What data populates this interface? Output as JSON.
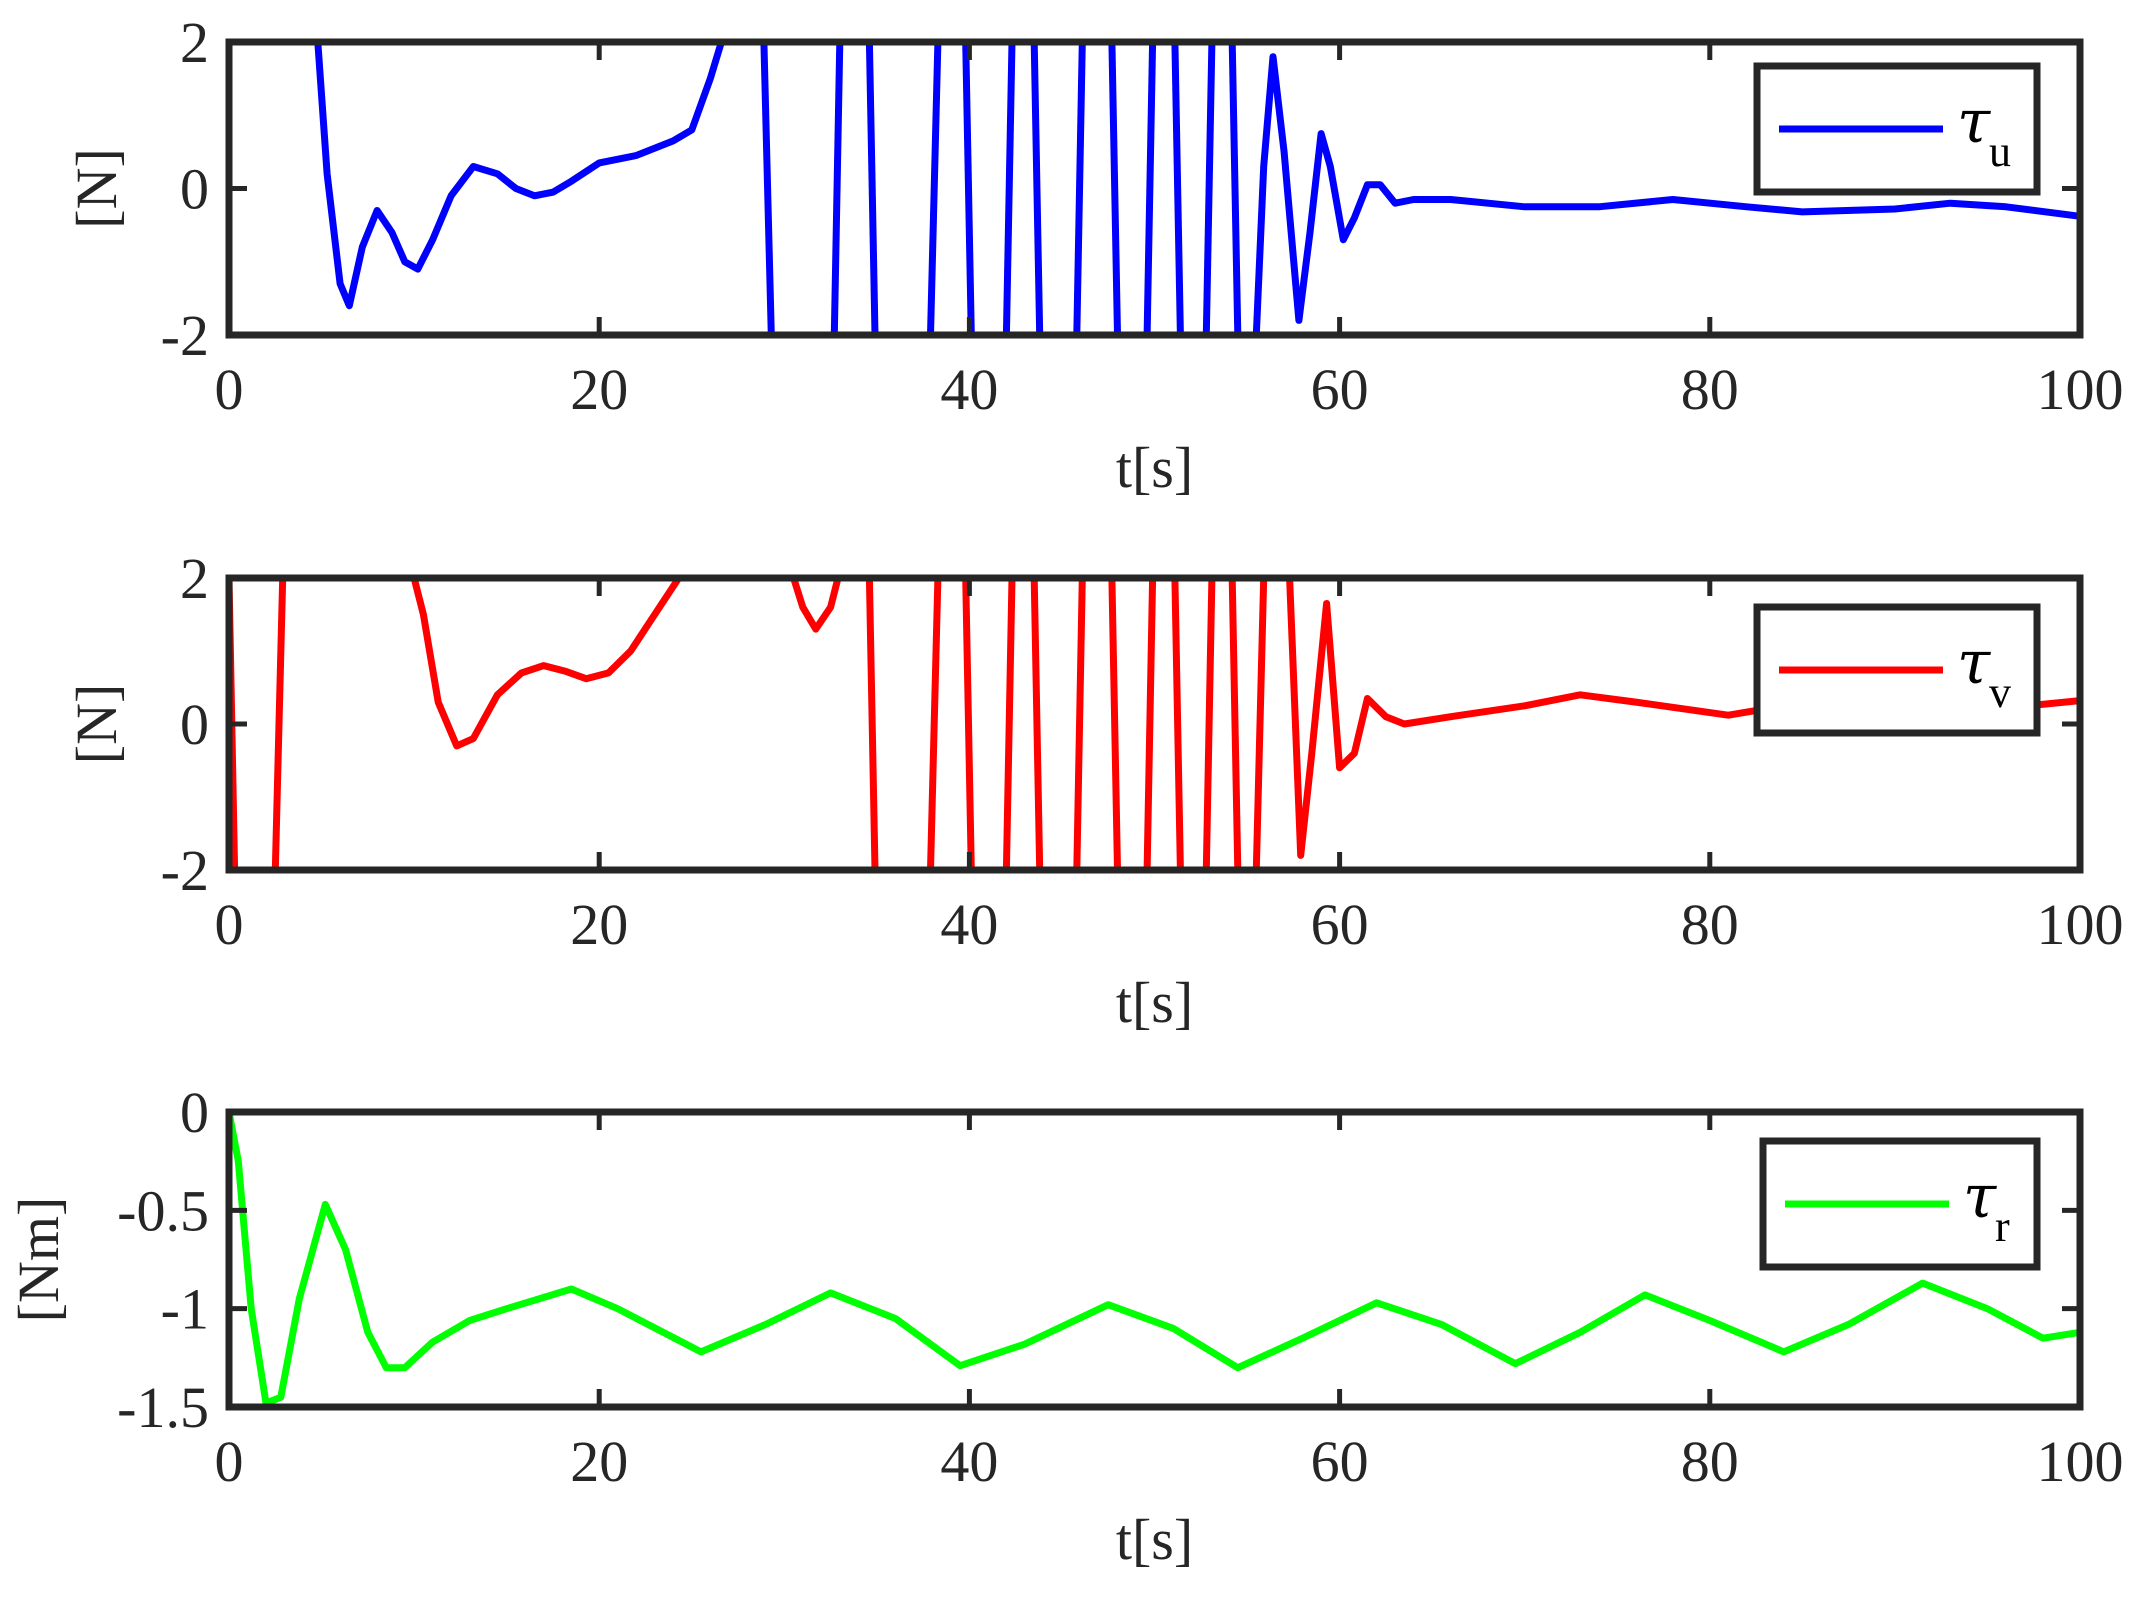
{
  "chart_data": [
    {
      "type": "line",
      "xlabel": "t[s]",
      "ylabel": "[N]",
      "xlim": [
        0,
        100
      ],
      "ylim": [
        -2,
        2
      ],
      "xticks": [
        "0",
        "20",
        "40",
        "60",
        "80",
        "100"
      ],
      "yticks": [
        "-2",
        "0",
        "2"
      ],
      "xtick_values": [
        0,
        20,
        40,
        60,
        80,
        100
      ],
      "ytick_values": [
        -2,
        0,
        2
      ],
      "grid": false,
      "legend_placement": "top-right",
      "series": [
        {
          "name": "τu",
          "symbol": "τ",
          "subscript": "u",
          "color": "#0000ff",
          "x": [
            0,
            4.8,
            5.3,
            6,
            6.5,
            7.2,
            8,
            8.8,
            9.5,
            10.2,
            11,
            12,
            13.2,
            14.5,
            15.5,
            16.5,
            17.5,
            18.5,
            20,
            22,
            24,
            25,
            26,
            26.6,
            28.9,
            29.3,
            32.7,
            33.0,
            34.6,
            34.9,
            37.9,
            38.3,
            39.8,
            40.1,
            42.0,
            42.3,
            43.5,
            43.8,
            45.8,
            46.1,
            47.7,
            48.0,
            49.6,
            49.9,
            51.1,
            51.4,
            52.8,
            53.1,
            54.2,
            54.5,
            55.5,
            55.9,
            56.4,
            57,
            57.8,
            58.4,
            59,
            59.5,
            60.2,
            60.8,
            61.5,
            62.2,
            63,
            64,
            66,
            70,
            74,
            78,
            82,
            85,
            90,
            93,
            96,
            100
          ],
          "y": [
            2,
            2,
            0.2,
            -1.3,
            -1.6,
            -0.8,
            -0.3,
            -0.6,
            -1.0,
            -1.1,
            -0.7,
            -0.1,
            0.3,
            0.2,
            0.0,
            -0.1,
            -0.05,
            0.1,
            0.35,
            0.45,
            0.65,
            0.8,
            1.5,
            2,
            2,
            -2,
            -2,
            2,
            2,
            -2,
            -2,
            2,
            2,
            -2,
            -2,
            2,
            2,
            -2,
            -2,
            2,
            2,
            -2,
            -2,
            2,
            2,
            -2,
            -2,
            2,
            2,
            -2,
            -2,
            0.3,
            1.8,
            0.5,
            -1.8,
            -0.6,
            0.75,
            0.3,
            -0.7,
            -0.4,
            0.05,
            0.05,
            -0.2,
            -0.15,
            -0.15,
            -0.25,
            -0.25,
            -0.15,
            -0.25,
            -0.32,
            -0.28,
            -0.2,
            -0.25,
            -0.38
          ]
        }
      ]
    },
    {
      "type": "line",
      "xlabel": "t[s]",
      "ylabel": "[N]",
      "xlim": [
        0,
        100
      ],
      "ylim": [
        -2,
        2
      ],
      "xticks": [
        "0",
        "20",
        "40",
        "60",
        "80",
        "100"
      ],
      "yticks": [
        "-2",
        "0",
        "2"
      ],
      "xtick_values": [
        0,
        20,
        40,
        60,
        80,
        100
      ],
      "ytick_values": [
        -2,
        0,
        2
      ],
      "grid": false,
      "legend_placement": "top-right",
      "series": [
        {
          "name": "τv",
          "symbol": "τ",
          "subscript": "v",
          "color": "#ff0000",
          "x": [
            0,
            0.3,
            0.6,
            2.5,
            2.9,
            10,
            10.5,
            11.3,
            12.3,
            13.2,
            14.5,
            15.8,
            17,
            18.2,
            19.3,
            20.5,
            21.7,
            23,
            24.3,
            30.5,
            31.0,
            31.7,
            32.5,
            32.9,
            34.6,
            34.9,
            37.9,
            38.3,
            39.8,
            40.1,
            42.0,
            42.3,
            43.5,
            43.8,
            45.8,
            46.1,
            47.7,
            48.0,
            49.6,
            49.9,
            51.1,
            51.4,
            52.8,
            53.1,
            54.2,
            54.5,
            55.5,
            55.9,
            57.3,
            57.9,
            58.5,
            59.3,
            60.0,
            60.8,
            61.5,
            62.5,
            63.5,
            66,
            70,
            73,
            76,
            81,
            84,
            88,
            92,
            96,
            100
          ],
          "y": [
            2,
            -2,
            -2,
            -2,
            2,
            2,
            1.5,
            0.3,
            -0.3,
            -0.2,
            0.4,
            0.7,
            0.8,
            0.72,
            0.62,
            0.7,
            1.0,
            1.5,
            2,
            2,
            1.6,
            1.3,
            1.6,
            2,
            2,
            -2,
            -2,
            2,
            2,
            -2,
            -2,
            2,
            2,
            -2,
            -2,
            2,
            2,
            -2,
            -2,
            2,
            2,
            -2,
            -2,
            2,
            2,
            -2,
            -2,
            2,
            2,
            -1.8,
            -0.4,
            1.65,
            -0.6,
            -0.4,
            0.35,
            0.1,
            0.0,
            0.1,
            0.25,
            0.4,
            0.3,
            0.12,
            0.25,
            0.4,
            0.12,
            0.22,
            0.32
          ]
        }
      ]
    },
    {
      "type": "line",
      "xlabel": "t[s]",
      "ylabel": "[Nm]",
      "xlim": [
        0,
        100
      ],
      "ylim": [
        -1.5,
        0
      ],
      "xticks": [
        "0",
        "20",
        "40",
        "60",
        "80",
        "100"
      ],
      "yticks": [
        "-1.5",
        "-1",
        "-0.5",
        "0"
      ],
      "xtick_values": [
        0,
        20,
        40,
        60,
        80,
        100
      ],
      "ytick_values": [
        -1.5,
        -1,
        -0.5,
        0
      ],
      "grid": false,
      "legend_placement": "top-right",
      "series": [
        {
          "name": "τr",
          "symbol": "τ",
          "subscript": "r",
          "color": "#00ff00",
          "x": [
            0,
            0.5,
            1.2,
            2.0,
            2.8,
            3.8,
            5.2,
            6.3,
            7.5,
            8.5,
            9.5,
            11,
            13,
            15,
            18.5,
            21,
            25.5,
            29,
            32.5,
            36,
            39.5,
            43,
            47.5,
            51,
            54.5,
            58,
            62,
            65.5,
            69.5,
            73,
            76.5,
            80,
            84,
            87.5,
            91.5,
            95,
            98,
            100
          ],
          "y": [
            0,
            -0.25,
            -1.0,
            -1.48,
            -1.45,
            -0.95,
            -0.47,
            -0.7,
            -1.12,
            -1.3,
            -1.3,
            -1.17,
            -1.06,
            -1.0,
            -0.9,
            -1.0,
            -1.22,
            -1.08,
            -0.92,
            -1.05,
            -1.29,
            -1.18,
            -0.98,
            -1.1,
            -1.3,
            -1.15,
            -0.97,
            -1.08,
            -1.28,
            -1.12,
            -0.93,
            -1.06,
            -1.22,
            -1.08,
            -0.87,
            -1.0,
            -1.15,
            -1.12
          ]
        }
      ]
    }
  ]
}
